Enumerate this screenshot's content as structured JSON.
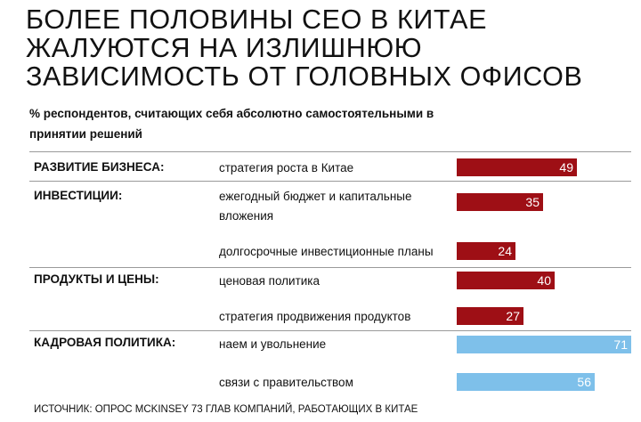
{
  "title": "Более половины CEO в Китае жалуются на излишнюю зависимость от головных офисов",
  "subtitle": "% респондентов, считающих себя абсолютно самостоятельными в принятии решений",
  "source": "ИСТОЧНИК: ОПРОС MCKINSEY 73 ГЛАВ КОМПАНИЙ, РАБОТАЮЩИХ В КИТАЕ",
  "colors": {
    "dark": "#9e0f15",
    "light": "#7ec0ea"
  },
  "chart_data": {
    "type": "bar",
    "orientation": "horizontal",
    "title": "Более половины CEO в Китае жалуются на излишнюю зависимость от головных офисов",
    "subtitle": "% респондентов, считающих себя абсолютно самостоятельными в принятии решений",
    "xlim": [
      0,
      100
    ],
    "groups": [
      {
        "name": "РАЗВИТИЕ БИЗНЕСА:",
        "items": [
          {
            "label": "стратегия роста в Китае",
            "value": 49,
            "color": "dark"
          }
        ]
      },
      {
        "name": "ИНВЕСТИЦИИ:",
        "items": [
          {
            "label": "ежегодный бюджет и капитальные вложения",
            "value": 35,
            "color": "dark"
          },
          {
            "label": "долгосрочные инвестиционные планы",
            "value": 24,
            "color": "dark"
          }
        ]
      },
      {
        "name": "ПРОДУКТЫ И ЦЕНЫ:",
        "items": [
          {
            "label": "ценовая политика",
            "value": 40,
            "color": "dark"
          },
          {
            "label": "стратегия продвижения продуктов",
            "value": 27,
            "color": "dark"
          }
        ]
      },
      {
        "name": "КАДРОВАЯ ПОЛИТИКА:",
        "items": [
          {
            "label": "наем и увольнение",
            "value": 71,
            "color": "light"
          },
          {
            "label": "связи с правительством",
            "value": 56,
            "color": "light"
          }
        ]
      }
    ]
  }
}
